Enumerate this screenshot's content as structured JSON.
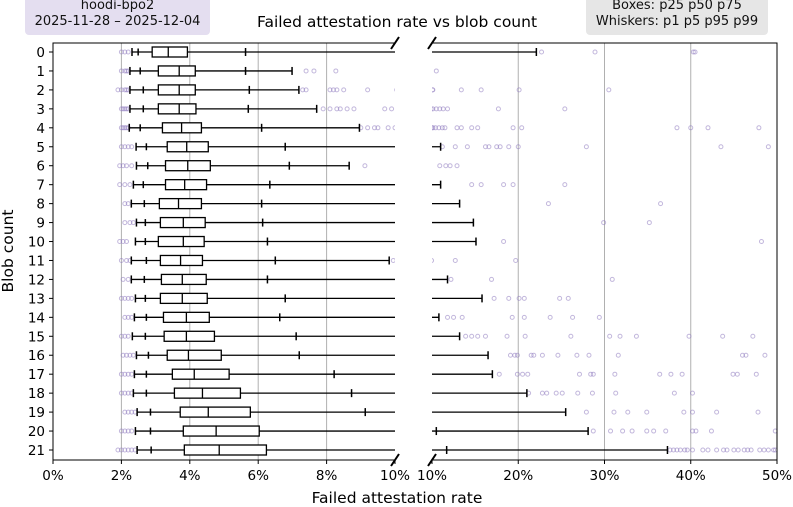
{
  "annotations": {
    "left_title": "hoodi-bpo2",
    "left_dates": "2025-11-28 – 2025-12-04",
    "legend_line1": "Boxes: p25 p50 p75",
    "legend_line2": "Whiskers: p1 p5 p95 p99",
    "left_box_color": "#e4def0",
    "right_box_color": "#e6e6e6"
  },
  "chart_data": {
    "type": "box",
    "title": "Failed attestation rate vs blob count",
    "xlabel": "Failed attestation rate",
    "ylabel": "Blob count",
    "broken_x_axis": true,
    "xlim_left": [
      0,
      10
    ],
    "xlim_right": [
      10,
      50
    ],
    "xticks_left": [
      "0%",
      "2%",
      "4%",
      "6%",
      "8%",
      "10%"
    ],
    "xticks_right": [
      "10%",
      "20%",
      "30%",
      "40%",
      "50%"
    ],
    "grid": "vertical",
    "outlier_color": "#8f7cc0",
    "categories": [
      "0",
      "1",
      "2",
      "3",
      "4",
      "5",
      "6",
      "7",
      "8",
      "9",
      "10",
      "11",
      "12",
      "13",
      "14",
      "15",
      "16",
      "17",
      "18",
      "19",
      "20",
      "21"
    ],
    "stats": [
      {
        "p1": 2.31,
        "p5": 2.49,
        "p25": 2.9,
        "p50": 3.37,
        "p75": 3.93,
        "p95": 5.63,
        "p99": 22.1,
        "outliers": [
          2.0,
          2.1,
          2.2,
          22.7,
          28.9,
          40.3,
          40.5
        ]
      },
      {
        "p1": 2.25,
        "p5": 2.55,
        "p25": 3.08,
        "p50": 3.69,
        "p75": 4.16,
        "p95": 5.63,
        "p99": 6.99,
        "outliers": [
          2.0,
          2.1,
          2.15,
          2.2,
          7.4,
          7.63,
          8.27,
          10.5
        ]
      },
      {
        "p1": 2.25,
        "p5": 2.64,
        "p25": 3.08,
        "p50": 3.69,
        "p75": 4.16,
        "p95": 5.74,
        "p99": 7.19,
        "outliers": [
          1.9,
          2.0,
          2.1,
          2.15,
          2.2,
          7.3,
          7.4,
          8.1,
          8.2,
          8.3,
          8.5,
          9.2,
          10.05,
          10.1,
          13.4,
          15.7,
          20.1,
          30.5
        ]
      },
      {
        "p1": 2.25,
        "p5": 2.64,
        "p25": 3.08,
        "p50": 3.69,
        "p75": 4.18,
        "p95": 5.71,
        "p99": 7.71,
        "outliers": [
          2.0,
          2.05,
          2.1,
          2.15,
          2.2,
          7.9,
          8.1,
          8.3,
          8.4,
          8.6,
          8.8,
          9.7,
          9.9,
          10.1,
          10.5,
          10.9,
          11.3,
          11.8,
          17.7,
          25.4
        ]
      },
      {
        "p1": 2.23,
        "p5": 2.55,
        "p25": 3.2,
        "p50": 3.76,
        "p75": 4.34,
        "p95": 6.1,
        "p99": 8.96,
        "outliers": [
          2.0,
          2.05,
          2.1,
          2.15,
          2.2,
          9.0,
          9.2,
          9.4,
          9.5,
          9.8,
          10.0,
          10.1,
          10.4,
          10.8,
          11.2,
          11.5,
          12.9,
          13.4,
          14.6,
          15.3,
          19.4,
          20.4,
          38.4,
          40.0,
          42.0,
          47.9
        ]
      },
      {
        "p1": 2.43,
        "p5": 2.73,
        "p25": 3.34,
        "p50": 3.91,
        "p75": 4.54,
        "p95": 6.79,
        "p99": 11.0,
        "outliers": [
          2.0,
          2.1,
          2.2,
          2.3,
          11.2,
          12.7,
          14.1,
          16.2,
          16.6,
          17.5,
          17.9,
          18.9,
          20.0,
          27.9,
          43.5,
          49.0
        ]
      },
      {
        "p1": 2.44,
        "p5": 2.77,
        "p25": 3.29,
        "p50": 3.94,
        "p75": 4.6,
        "p95": 6.91,
        "p99": 8.66,
        "outliers": [
          1.95,
          2.05,
          2.15,
          2.3,
          9.12,
          10.9,
          11.6,
          12.1,
          12.9
        ]
      },
      {
        "p1": 2.35,
        "p5": 2.64,
        "p25": 3.29,
        "p50": 3.85,
        "p75": 4.49,
        "p95": 6.34,
        "p99": 11.0,
        "outliers": [
          1.95,
          2.1,
          2.25,
          14.6,
          15.7,
          18.3,
          19.4,
          25.4
        ]
      },
      {
        "p1": 2.29,
        "p5": 2.67,
        "p25": 3.11,
        "p50": 3.67,
        "p75": 4.34,
        "p95": 6.1,
        "p99": 13.2,
        "outliers": [
          2.1,
          2.2,
          23.5,
          36.5
        ]
      },
      {
        "p1": 2.44,
        "p5": 2.7,
        "p25": 3.14,
        "p50": 3.81,
        "p75": 4.45,
        "p95": 6.13,
        "p99": 14.8,
        "outliers": [
          2.1,
          2.25,
          2.35,
          29.9,
          35.2
        ]
      },
      {
        "p1": 2.41,
        "p5": 2.7,
        "p25": 3.08,
        "p50": 3.81,
        "p75": 4.42,
        "p95": 6.27,
        "p99": 15.1,
        "outliers": [
          1.95,
          2.05,
          2.15,
          18.3,
          48.2
        ]
      },
      {
        "p1": 2.29,
        "p5": 2.73,
        "p25": 3.14,
        "p50": 3.73,
        "p75": 4.37,
        "p95": 6.5,
        "p99": 9.83,
        "outliers": [
          2.0,
          2.15,
          2.25,
          9.95,
          12.7,
          19.7
        ]
      },
      {
        "p1": 2.29,
        "p5": 2.67,
        "p25": 3.17,
        "p50": 3.78,
        "p75": 4.48,
        "p95": 6.27,
        "p99": 11.8,
        "outliers": [
          2.05,
          2.2,
          12.2,
          16.9,
          30.9
        ]
      },
      {
        "p1": 2.41,
        "p5": 2.7,
        "p25": 3.14,
        "p50": 3.78,
        "p75": 4.51,
        "p95": 6.79,
        "p99": 15.8,
        "outliers": [
          2.0,
          2.1,
          2.2,
          2.3,
          17.2,
          18.9,
          20.1,
          20.7,
          24.8,
          25.8
        ]
      },
      {
        "p1": 2.38,
        "p5": 2.73,
        "p25": 3.23,
        "p50": 3.9,
        "p75": 4.57,
        "p95": 6.63,
        "p99": 10.8,
        "outliers": [
          2.1,
          2.2,
          2.3,
          11.8,
          12.5,
          13.5,
          19.3,
          20.7,
          23.7,
          26.3,
          29.4
        ]
      },
      {
        "p1": 2.32,
        "p5": 2.7,
        "p25": 3.25,
        "p50": 3.9,
        "p75": 4.72,
        "p95": 7.11,
        "p99": 13.2,
        "outliers": [
          2.0,
          2.1,
          2.2,
          13.9,
          14.6,
          15.3,
          16.2,
          18.7,
          20.8,
          26.1,
          30.6,
          31.8,
          33.7,
          39.8,
          43.7,
          47.2
        ]
      },
      {
        "p1": 2.44,
        "p5": 2.79,
        "p25": 3.34,
        "p50": 3.96,
        "p75": 4.92,
        "p95": 7.2,
        "p99": 16.5,
        "outliers": [
          2.05,
          2.15,
          2.25,
          2.35,
          19.1,
          19.6,
          19.9,
          21.5,
          21.8,
          22.8,
          24.6,
          26.8,
          28.2,
          31.6,
          46.0,
          46.4,
          48.6
        ]
      },
      {
        "p1": 2.38,
        "p5": 2.73,
        "p25": 3.49,
        "p50": 4.13,
        "p75": 5.15,
        "p95": 8.22,
        "p99": 17.0,
        "outliers": [
          2.0,
          2.1,
          2.2,
          2.3,
          17.8,
          19.9,
          20.5,
          21.1,
          27.1,
          28.4,
          28.7,
          31.2,
          36.4,
          37.7,
          39.0,
          44.9,
          45.4,
          47.6
        ]
      },
      {
        "p1": 2.35,
        "p5": 2.73,
        "p25": 3.55,
        "p50": 4.37,
        "p75": 5.48,
        "p95": 8.73,
        "p99": 21.0,
        "outliers": [
          2.0,
          2.1,
          2.2,
          2.3,
          21.2,
          22.8,
          23.3,
          24.4,
          25.1,
          26.9,
          28.6,
          31.3,
          38.1,
          40.2
        ]
      },
      {
        "p1": 2.46,
        "p5": 2.85,
        "p25": 3.72,
        "p50": 4.54,
        "p75": 5.77,
        "p95": 9.13,
        "p99": 25.5,
        "outliers": [
          2.1,
          2.2,
          2.3,
          2.4,
          27.9,
          31.1,
          32.7,
          34.9,
          39.2,
          40.2,
          43.0,
          47.8
        ]
      },
      {
        "p1": 2.41,
        "p5": 2.85,
        "p25": 3.81,
        "p50": 4.77,
        "p75": 6.03,
        "p95": 10.5,
        "p99": 28.1,
        "outliers": [
          2.0,
          2.1,
          2.2,
          2.3,
          28.7,
          30.7,
          32.1,
          33.2,
          34.9,
          35.7,
          37.1,
          40.2,
          40.6,
          42.4,
          49.8
        ]
      },
      {
        "p1": 2.46,
        "p5": 2.87,
        "p25": 3.84,
        "p50": 4.86,
        "p75": 6.24,
        "p95": 11.7,
        "p99": 37.3,
        "outliers": [
          1.9,
          2.0,
          2.1,
          2.2,
          2.3,
          2.4,
          37.6,
          38.0,
          38.4,
          38.8,
          39.3,
          39.6,
          40.2,
          41.4,
          42.0,
          43.0,
          43.8,
          44.2,
          45.0,
          45.5,
          46.2,
          46.6,
          47.0,
          48.0,
          48.5,
          49.0,
          49.6,
          49.8
        ]
      }
    ]
  }
}
